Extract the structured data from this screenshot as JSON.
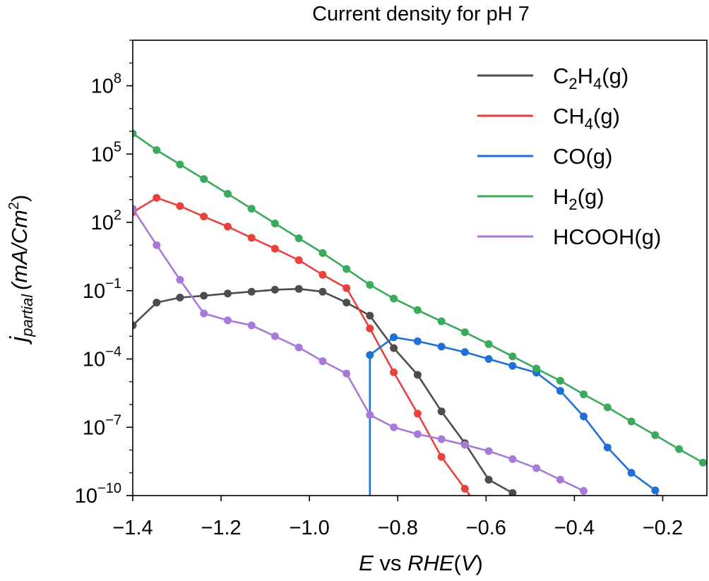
{
  "chart_data": {
    "type": "line",
    "title": "Current density for pH 7",
    "xlabel": {
      "E": "E",
      "vs": " vs ",
      "rhe": "RHE",
      "paren_open": "(",
      "unit": "V",
      "paren_close": ")"
    },
    "ylabel": {
      "j": "j",
      "sub": "partial",
      "units": "(mA/Cm",
      "sup": "2",
      "close": ")"
    },
    "x_scale": "linear",
    "y_scale": "log",
    "xlim": [
      -1.4,
      -0.1
    ],
    "ylim": [
      1e-10,
      10000000000.0
    ],
    "x_ticks": [
      -1.4,
      -1.2,
      -1.0,
      -0.8,
      -0.6,
      -0.4,
      -0.2
    ],
    "x_tick_labels": [
      "−1.4",
      "−1.2",
      "−1.0",
      "−0.8",
      "−0.6",
      "−0.4",
      "−0.2"
    ],
    "y_ticks": [
      {
        "value": 1e-10,
        "base": "10",
        "exp": "−10"
      },
      {
        "value": 1e-07,
        "base": "10",
        "exp": "−7"
      },
      {
        "value": 0.0001,
        "base": "10",
        "exp": "−4"
      },
      {
        "value": 0.1,
        "base": "10",
        "exp": "−1"
      },
      {
        "value": 100.0,
        "base": "10",
        "exp": "2"
      },
      {
        "value": 100000.0,
        "base": "10",
        "exp": "5"
      },
      {
        "value": 100000000.0,
        "base": "10",
        "exp": "8"
      }
    ],
    "grid": false,
    "legend_position": "top-right",
    "series": [
      {
        "name": "C2H4(g)",
        "label_parts": [
          {
            "t": "C"
          },
          {
            "t": "2",
            "sub": true
          },
          {
            "t": "H"
          },
          {
            "t": "4",
            "sub": true
          },
          {
            "t": "(g)"
          }
        ],
        "color": "#4d4d4d",
        "x": [
          -1.4,
          -1.346,
          -1.293,
          -1.239,
          -1.185,
          -1.131,
          -1.078,
          -1.024,
          -0.97,
          -0.916,
          -0.863,
          -0.809,
          -0.755,
          -0.701,
          -0.648,
          -0.594,
          -0.54
        ],
        "y": [
          0.003,
          0.03,
          0.05,
          0.06,
          0.075,
          0.09,
          0.11,
          0.12,
          0.09,
          0.03,
          0.008,
          0.0003,
          2e-05,
          5e-07,
          2e-08,
          5e-10,
          1.3e-10
        ]
      },
      {
        "name": "CH4(g)",
        "label_parts": [
          {
            "t": "CH"
          },
          {
            "t": "4",
            "sub": true
          },
          {
            "t": "(g)"
          }
        ],
        "color": "#e8423f",
        "x": [
          -1.4,
          -1.346,
          -1.293,
          -1.239,
          -1.185,
          -1.131,
          -1.078,
          -1.024,
          -0.97,
          -0.916,
          -0.863,
          -0.809,
          -0.755,
          -0.701,
          -0.648,
          -0.594
        ],
        "y": [
          280,
          1200,
          520,
          180,
          65,
          21,
          7,
          2.2,
          0.5,
          0.13,
          0.0022,
          2.6e-05,
          4e-07,
          5e-09,
          2e-10,
          8e-12
        ]
      },
      {
        "name": "CO(g)",
        "label_parts": [
          {
            "t": "CO(g)"
          }
        ],
        "color": "#1f6fd6",
        "x": [
          -0.863,
          -0.863,
          -0.809,
          -0.755,
          -0.701,
          -0.648,
          -0.594,
          -0.54,
          -0.486,
          -0.432,
          -0.379,
          -0.325,
          -0.271,
          -0.217,
          -0.163
        ],
        "y": [
          1e-12,
          0.00015,
          0.0009,
          0.0006,
          0.00035,
          0.0002,
          0.0001,
          5e-05,
          2.5e-05,
          4e-06,
          3e-07,
          1.3e-08,
          1e-09,
          1.7e-10,
          1e-12
        ]
      },
      {
        "name": "H2(g)",
        "label_parts": [
          {
            "t": "H"
          },
          {
            "t": "2",
            "sub": true
          },
          {
            "t": "(g)"
          }
        ],
        "color": "#3aaa5c",
        "x": [
          -1.4,
          -1.346,
          -1.293,
          -1.239,
          -1.185,
          -1.131,
          -1.078,
          -1.024,
          -0.97,
          -0.916,
          -0.863,
          -0.809,
          -0.755,
          -0.701,
          -0.648,
          -0.594,
          -0.54,
          -0.486,
          -0.432,
          -0.379,
          -0.325,
          -0.271,
          -0.217,
          -0.163,
          -0.109
        ],
        "y": [
          800000.0,
          150000.0,
          35000.0,
          8000.0,
          1800.0,
          400.0,
          90,
          20,
          4.5,
          0.9,
          0.18,
          0.045,
          0.014,
          0.0045,
          0.0015,
          0.00045,
          0.00013,
          3.8e-05,
          1.1e-05,
          2.8e-06,
          7.5e-07,
          1.8e-07,
          4.5e-08,
          1.1e-08,
          2.8e-09
        ]
      },
      {
        "name": "HCOOH(g)",
        "label_parts": [
          {
            "t": "HCOOH(g)"
          }
        ],
        "color": "#a77ad9",
        "x": [
          -1.4,
          -1.346,
          -1.293,
          -1.239,
          -1.185,
          -1.131,
          -1.078,
          -1.024,
          -0.97,
          -0.916,
          -0.863,
          -0.809,
          -0.755,
          -0.701,
          -0.648,
          -0.594,
          -0.54,
          -0.486,
          -0.432,
          -0.379
        ],
        "y": [
          400,
          10,
          0.3,
          0.01,
          0.005,
          0.003,
          0.001,
          0.00032,
          8e-05,
          2.3e-05,
          3.5e-07,
          1e-07,
          5e-08,
          3e-08,
          1.7e-08,
          9e-09,
          4e-09,
          1.6e-09,
          5e-10,
          1.6e-10
        ]
      }
    ]
  }
}
